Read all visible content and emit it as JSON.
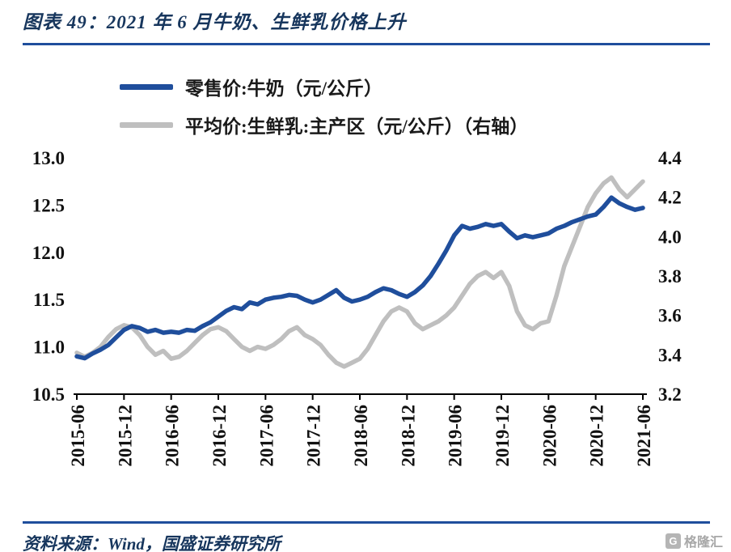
{
  "page": {
    "title": "图表 49：2021 年 6 月牛奶、生鲜乳价格上升",
    "source_note": "资料来源：Wind，国盛证券研究所",
    "watermark": "格隆汇",
    "watermark_icon": "G",
    "accent_color": "#17365D",
    "rule_color": "#1F4E9C"
  },
  "chart_data": {
    "type": "line",
    "title": "图表 49：2021 年 6 月牛奶、生鲜乳价格上升",
    "grid": false,
    "legend_position": "top",
    "x_tick_labels": [
      "2015-06",
      "2015-12",
      "2016-06",
      "2016-12",
      "2017-06",
      "2017-12",
      "2018-06",
      "2018-12",
      "2019-06",
      "2019-12",
      "2020-06",
      "2020-12",
      "2021-06"
    ],
    "x_tick_step_months": 6,
    "left_axis": {
      "min": 10.5,
      "max": 13.0,
      "tick_interval": 0.5,
      "ticks": [
        "13.0",
        "12.5",
        "12.0",
        "11.5",
        "11.0",
        "10.5"
      ]
    },
    "right_axis": {
      "min": 3.2,
      "max": 4.4,
      "tick_interval": 0.2,
      "ticks": [
        "4.4",
        "4.2",
        "4.0",
        "3.8",
        "3.6",
        "3.4",
        "3.2"
      ]
    },
    "series": [
      {
        "name": "零售价:牛奶（元/公斤）",
        "axis": "left",
        "color": "#1F4E9C",
        "values": [
          10.9,
          10.88,
          10.93,
          10.97,
          11.02,
          11.1,
          11.18,
          11.22,
          11.2,
          11.16,
          11.18,
          11.15,
          11.16,
          11.15,
          11.18,
          11.17,
          11.22,
          11.26,
          11.32,
          11.38,
          11.42,
          11.4,
          11.47,
          11.45,
          11.5,
          11.52,
          11.53,
          11.55,
          11.54,
          11.5,
          11.47,
          11.5,
          11.55,
          11.6,
          11.52,
          11.48,
          11.5,
          11.53,
          11.58,
          11.62,
          11.6,
          11.56,
          11.53,
          11.58,
          11.65,
          11.75,
          11.88,
          12.02,
          12.18,
          12.28,
          12.25,
          12.27,
          12.3,
          12.28,
          12.3,
          12.22,
          12.15,
          12.18,
          12.16,
          12.18,
          12.2,
          12.25,
          12.28,
          12.32,
          12.35,
          12.38,
          12.4,
          12.48,
          12.58,
          12.52,
          12.48,
          12.45,
          12.47
        ]
      },
      {
        "name": "平均价:生鲜乳:主产区（元/公斤）（右轴）",
        "axis": "right",
        "color": "#BFBFBF",
        "values": [
          3.41,
          3.39,
          3.41,
          3.44,
          3.49,
          3.53,
          3.55,
          3.54,
          3.5,
          3.44,
          3.4,
          3.42,
          3.38,
          3.39,
          3.42,
          3.46,
          3.5,
          3.53,
          3.54,
          3.52,
          3.48,
          3.44,
          3.42,
          3.44,
          3.43,
          3.45,
          3.48,
          3.52,
          3.54,
          3.5,
          3.48,
          3.45,
          3.4,
          3.36,
          3.34,
          3.36,
          3.38,
          3.43,
          3.5,
          3.57,
          3.62,
          3.64,
          3.62,
          3.56,
          3.53,
          3.55,
          3.57,
          3.6,
          3.64,
          3.7,
          3.76,
          3.8,
          3.82,
          3.79,
          3.82,
          3.75,
          3.62,
          3.55,
          3.53,
          3.56,
          3.57,
          3.7,
          3.85,
          3.95,
          4.05,
          4.15,
          4.22,
          4.27,
          4.3,
          4.24,
          4.2,
          4.24,
          4.28
        ]
      }
    ]
  }
}
